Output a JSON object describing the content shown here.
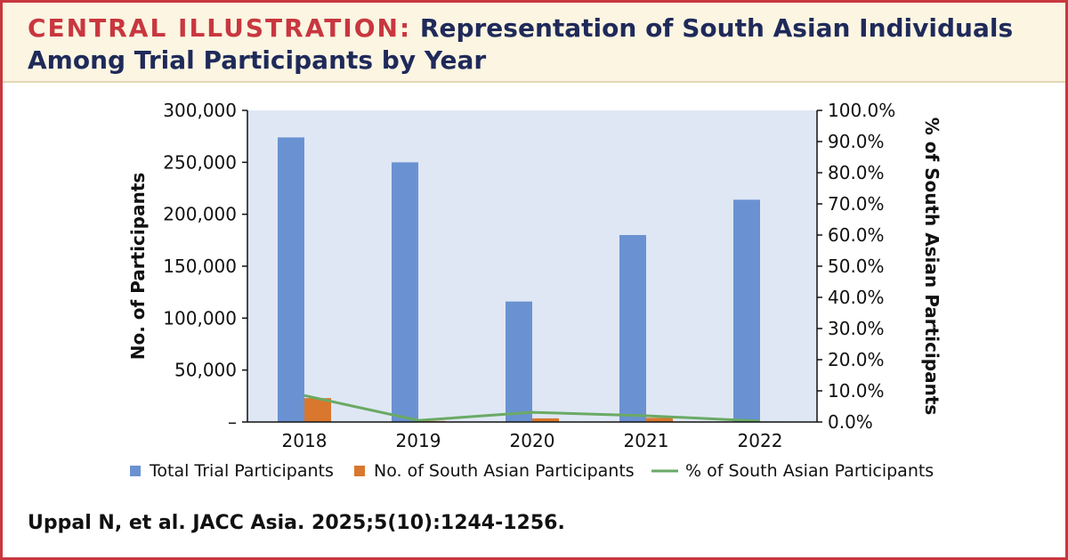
{
  "header": {
    "label": "CENTRAL ILLUSTRATION:",
    "title_line1": "Representation of South Asian Individuals",
    "title_line2": "Among Trial Participants by Year"
  },
  "citation": "Uppal N, et al. JACC Asia. 2025;5(10):1244-1256.",
  "colors": {
    "accent": "#c8373f",
    "title": "#1f2a5a",
    "header_bg": "#fbf5e2",
    "plot_bg": "#dfe7f5",
    "total_bar": "#6a92d2",
    "sa_bar": "#d9772e",
    "pct_line": "#6aaa64"
  },
  "chart_data": {
    "type": "bar",
    "categories": [
      "2018",
      "2019",
      "2020",
      "2021",
      "2022"
    ],
    "series": [
      {
        "name": "Total Trial Participants",
        "type": "bar",
        "axis": "left",
        "values": [
          274000,
          250000,
          116000,
          180000,
          214000
        ]
      },
      {
        "name": "No. of South Asian Participants",
        "type": "bar",
        "axis": "left",
        "values": [
          23000,
          1000,
          3500,
          4000,
          500
        ]
      },
      {
        "name": "% of South Asian Participants",
        "type": "line",
        "axis": "right",
        "values": [
          8.5,
          0.5,
          3.1,
          2.0,
          0.3
        ]
      }
    ],
    "ylabel": "No. of Participants",
    "y2label": "% of South Asian Participants",
    "ylim": [
      0,
      300000
    ],
    "y2lim": [
      0,
      100
    ],
    "yticks": [
      "–",
      "50,000",
      "100,000",
      "150,000",
      "200,000",
      "250,000",
      "300,000"
    ],
    "y2ticks": [
      "0.0%",
      "10.0%",
      "20.0%",
      "30.0%",
      "40.0%",
      "50.0%",
      "60.0%",
      "70.0%",
      "80.0%",
      "90.0%",
      "100.0%"
    ],
    "legend_position": "bottom",
    "grid": false
  }
}
